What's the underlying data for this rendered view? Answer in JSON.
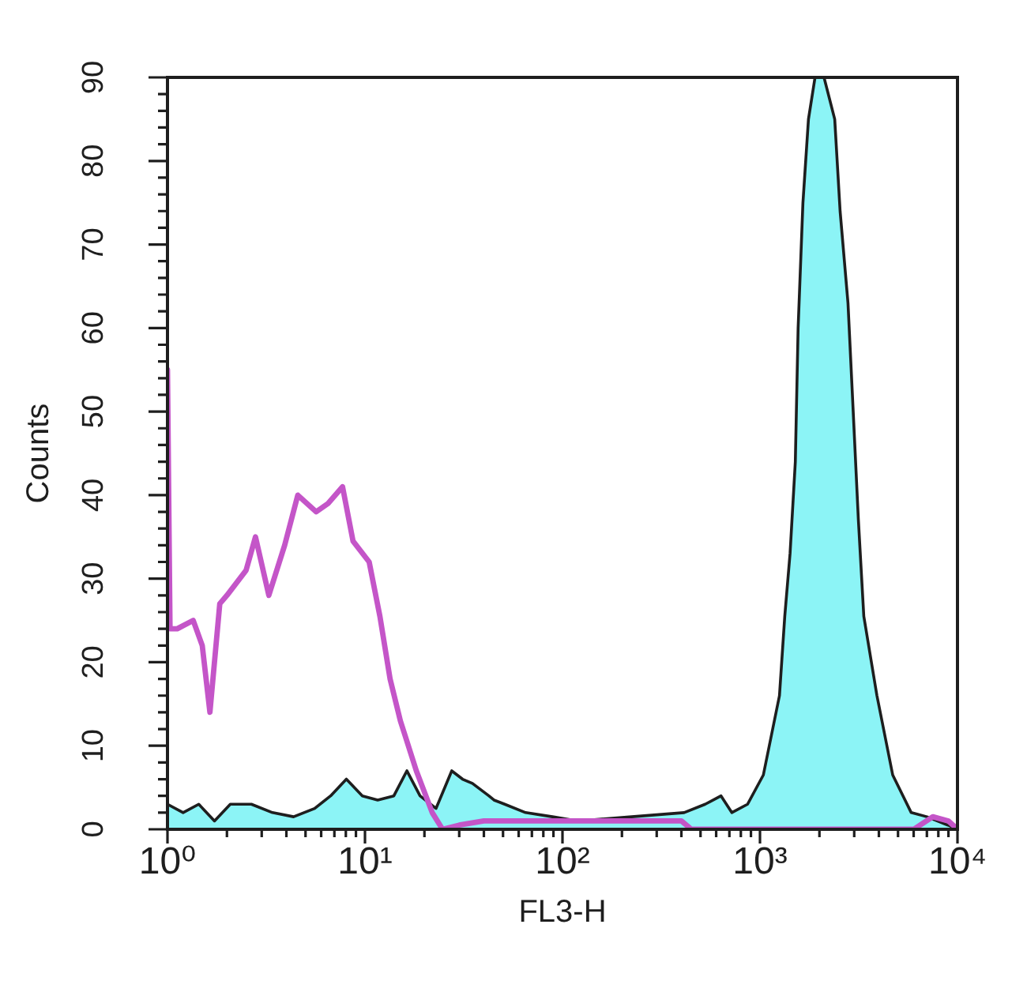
{
  "chart_data": {
    "type": "line",
    "xlabel": "FL3-H",
    "ylabel": "Counts",
    "log": "x",
    "xlim": [
      1,
      10000
    ],
    "xticks": [
      {
        "value": 1,
        "label": "10⁰"
      },
      {
        "value": 2,
        "label": null
      },
      {
        "value": 3,
        "label": null
      },
      {
        "value": 4,
        "label": null
      },
      {
        "value": 5,
        "label": null
      },
      {
        "value": 6,
        "label": null
      },
      {
        "value": 7,
        "label": null
      },
      {
        "value": 8,
        "label": null
      },
      {
        "value": 9,
        "label": null
      },
      {
        "value": 10,
        "label": "10¹"
      },
      {
        "value": 20,
        "label": null
      },
      {
        "value": 30,
        "label": null
      },
      {
        "value": 40,
        "label": null
      },
      {
        "value": 50,
        "label": null
      },
      {
        "value": 60,
        "label": null
      },
      {
        "value": 70,
        "label": null
      },
      {
        "value": 80,
        "label": null
      },
      {
        "value": 90,
        "label": null
      },
      {
        "value": 100,
        "label": "10²"
      },
      {
        "value": 200,
        "label": null
      },
      {
        "value": 300,
        "label": null
      },
      {
        "value": 400,
        "label": null
      },
      {
        "value": 500,
        "label": null
      },
      {
        "value": 600,
        "label": null
      },
      {
        "value": 700,
        "label": null
      },
      {
        "value": 800,
        "label": null
      },
      {
        "value": 900,
        "label": null
      },
      {
        "value": 1000,
        "label": "10³"
      },
      {
        "value": 2000,
        "label": null
      },
      {
        "value": 3000,
        "label": null
      },
      {
        "value": 4000,
        "label": null
      },
      {
        "value": 5000,
        "label": null
      },
      {
        "value": 6000,
        "label": null
      },
      {
        "value": 7000,
        "label": null
      },
      {
        "value": 8000,
        "label": null
      },
      {
        "value": 9000,
        "label": null
      },
      {
        "value": 10000,
        "label": "10⁴"
      }
    ],
    "ylim": [
      0,
      90
    ],
    "yticks": [
      0,
      {
        "value": 2,
        "label": null
      },
      {
        "value": 4,
        "label": null
      },
      {
        "value": 6,
        "label": null
      },
      {
        "value": 8,
        "label": null
      },
      10,
      {
        "value": 12,
        "label": null
      },
      {
        "value": 14,
        "label": null
      },
      {
        "value": 16,
        "label": null
      },
      {
        "value": 18,
        "label": null
      },
      20,
      {
        "value": 22,
        "label": null
      },
      {
        "value": 24,
        "label": null
      },
      {
        "value": 26,
        "label": null
      },
      {
        "value": 28,
        "label": null
      },
      30,
      {
        "value": 32,
        "label": null
      },
      {
        "value": 34,
        "label": null
      },
      {
        "value": 36,
        "label": null
      },
      {
        "value": 38,
        "label": null
      },
      40,
      {
        "value": 42,
        "label": null
      },
      {
        "value": 44,
        "label": null
      },
      {
        "value": 46,
        "label": null
      },
      {
        "value": 48,
        "label": null
      },
      50,
      {
        "value": 52,
        "label": null
      },
      {
        "value": 54,
        "label": null
      },
      {
        "value": 56,
        "label": null
      },
      {
        "value": 58,
        "label": null
      },
      60,
      {
        "value": 62,
        "label": null
      },
      {
        "value": 64,
        "label": null
      },
      {
        "value": 66,
        "label": null
      },
      {
        "value": 68,
        "label": null
      },
      70,
      {
        "value": 72,
        "label": null
      },
      {
        "value": 74,
        "label": null
      },
      {
        "value": 76,
        "label": null
      },
      {
        "value": 78,
        "label": null
      },
      80,
      {
        "value": 82,
        "label": null
      },
      {
        "value": 84,
        "label": null
      },
      {
        "value": 86,
        "label": null
      },
      {
        "value": 88,
        "label": null
      },
      90
    ],
    "series": [
      {
        "type": "area",
        "color": "#8cf4f6",
        "x": [
          1,
          1.2,
          1.44,
          1.73,
          2.08,
          2.66,
          3.4,
          4.35,
          5.56,
          6.7,
          8.05,
          9.7,
          11.6,
          14,
          16.3,
          19,
          22.9,
          27.5,
          31.2,
          35,
          42.4,
          45,
          51,
          65,
          89,
          120,
          224,
          413,
          528,
          635,
          720,
          865,
          1040,
          1255,
          1335,
          1420,
          1510,
          1560,
          1650,
          1760,
          1900,
          2110,
          2390,
          2545,
          2790,
          2965,
          3150,
          3355,
          3910,
          4700,
          5830,
          7000,
          8950,
          10000
        ],
        "values": [
          3,
          2,
          3,
          1,
          3,
          3,
          2,
          1.5,
          2.5,
          4,
          6,
          4,
          3.5,
          4,
          7,
          4,
          2.5,
          7,
          6,
          5.5,
          4,
          3.5,
          3,
          2,
          1.5,
          1,
          1.5,
          2,
          3,
          4,
          2,
          3,
          6.5,
          16,
          25.5,
          33,
          44,
          60,
          75,
          85,
          90,
          90,
          85,
          74,
          63,
          50,
          37,
          25.5,
          16,
          6.5,
          2,
          1.5,
          0.5,
          0
        ]
      },
      {
        "color": "#c455c8",
        "x": [
          1,
          1.03,
          1.12,
          1.35,
          1.5,
          1.64,
          1.84,
          2.0,
          2.5,
          2.79,
          3.26,
          3.92,
          4.57,
          5.66,
          6.5,
          7.7,
          8.7,
          10.5,
          11.9,
          13.4,
          15.1,
          18.2,
          21.9,
          24.7,
          30,
          40,
          60,
          100,
          200,
          400,
          450,
          6000,
          7500,
          9000,
          10000
        ],
        "values": [
          55,
          24,
          24,
          25,
          22,
          14,
          27,
          28,
          31,
          35,
          28,
          34,
          40,
          38,
          39,
          41,
          34.5,
          32,
          25.5,
          18,
          13,
          7,
          2,
          0,
          0.5,
          1,
          1,
          1,
          1,
          1,
          0,
          0,
          1.5,
          1,
          0
        ]
      }
    ]
  }
}
